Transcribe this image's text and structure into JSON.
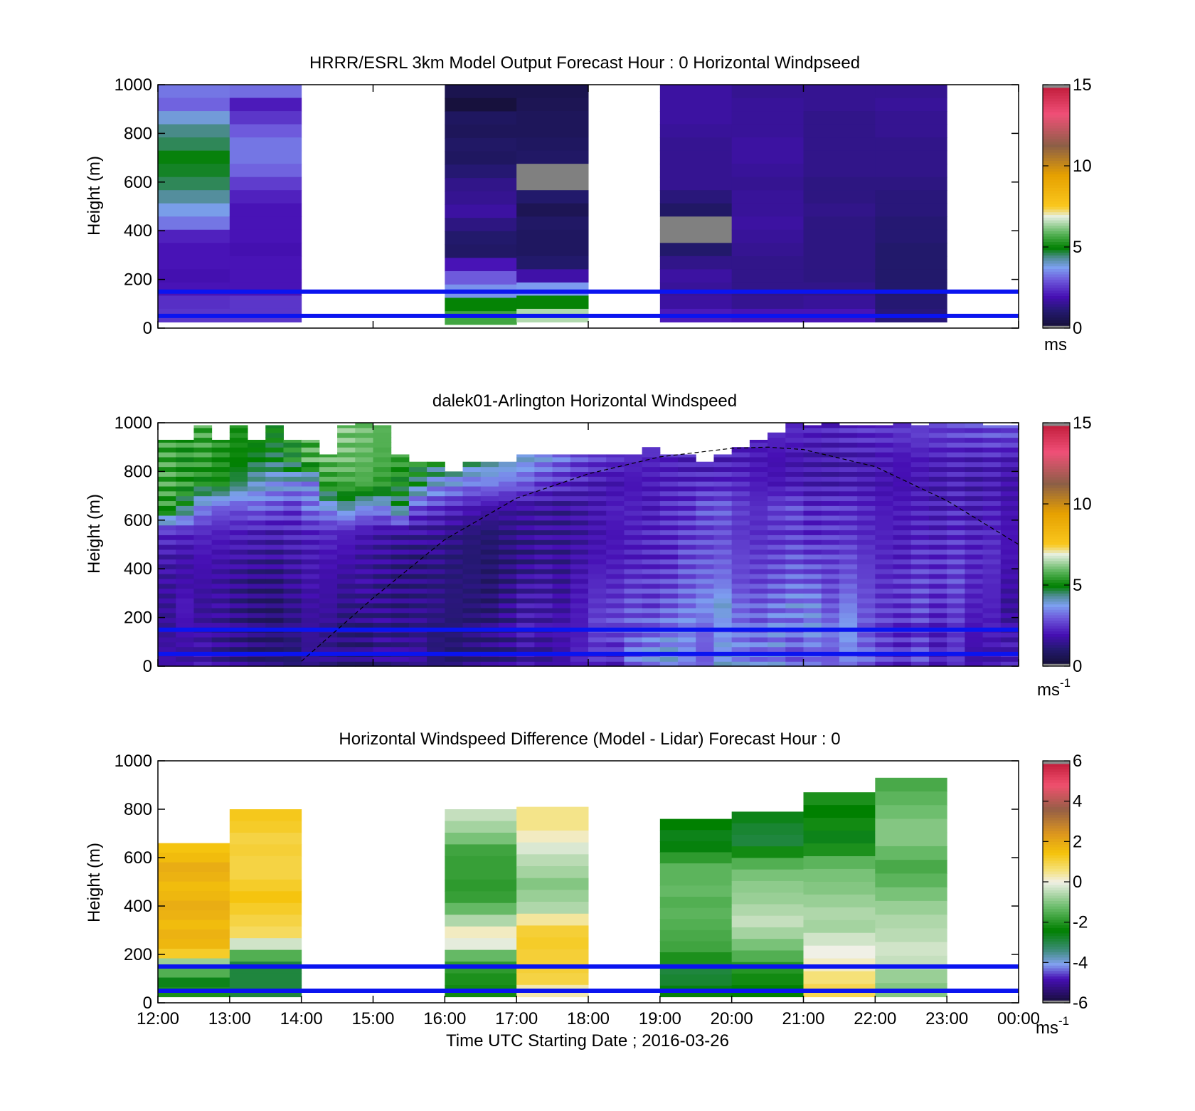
{
  "figure": {
    "xlabel": "Time UTC  Starting Date ; 2016-03-26",
    "x_tick_labels": [
      "12:00",
      "13:00",
      "14:00",
      "15:00",
      "16:00",
      "17:00",
      "18:00",
      "19:00",
      "20:00",
      "21:00",
      "22:00",
      "23:00",
      "00:00"
    ]
  },
  "chart_data": [
    {
      "type": "heatmap",
      "title": "HRRR/ESRL 3km Model Output   Forecast Hour : 0 Horizontal Windpseed",
      "ylabel": "Height (m)",
      "ylim": [
        0,
        1000
      ],
      "y_ticks": [
        0,
        200,
        400,
        600,
        800,
        1000
      ],
      "xlim": [
        12,
        24
      ],
      "colorbar": {
        "label": "ms",
        "superscript": "",
        "ticks": [
          0,
          5,
          10,
          15
        ],
        "range": [
          0,
          15
        ],
        "scheme": "speed"
      },
      "reference_lines_m": [
        50,
        150
      ],
      "columns": [
        {
          "start_hour": 12,
          "top_m": 1000,
          "bottom_m": 25,
          "values": [
            3.3,
            3.1,
            3.9,
            4.4,
            4.6,
            4.9,
            4.8,
            4.6,
            4.3,
            3.8,
            3.3,
            2.2,
            2.0,
            2.0,
            1.9,
            2.0,
            2.4,
            2.5
          ]
        },
        {
          "start_hour": 13,
          "top_m": 1000,
          "bottom_m": 25,
          "values": [
            3.2,
            2.1,
            2.5,
            3.0,
            3.3,
            3.3,
            3.1,
            2.6,
            2.2,
            2.0,
            2.0,
            2.0,
            1.9,
            2.0,
            2.0,
            2.0,
            2.5,
            2.5
          ]
        },
        {
          "start_hour": 16,
          "top_m": 1000,
          "bottom_m": 15,
          "values": [
            0.5,
            0.2,
            0.8,
            0.7,
            0.9,
            0.8,
            1.1,
            1.4,
            1.5,
            1.7,
            1.3,
            1.0,
            0.9,
            2.0,
            3.0,
            3.6,
            5.0,
            5.6
          ]
        },
        {
          "start_hour": 17,
          "top_m": 1000,
          "bottom_m": 25,
          "values": [
            0.5,
            0.6,
            0.7,
            0.7,
            0.8,
            0.9,
            0.0,
            0.0,
            1.0,
            0.6,
            0.9,
            0.8,
            0.8,
            1.0,
            1.8,
            3.7,
            5.0,
            6.5
          ]
        },
        {
          "start_hour": 19,
          "top_m": 1000,
          "bottom_m": 25,
          "values": [
            1.7,
            1.7,
            1.7,
            1.6,
            1.5,
            1.5,
            1.5,
            1.5,
            1.2,
            0.9,
            0.0,
            0.0,
            1.0,
            1.4,
            1.7,
            1.6,
            1.7,
            2.1
          ]
        },
        {
          "start_hour": 20,
          "top_m": 1000,
          "bottom_m": 25,
          "values": [
            1.5,
            1.6,
            1.6,
            1.6,
            1.7,
            1.7,
            1.6,
            1.5,
            1.6,
            1.6,
            1.7,
            1.6,
            1.5,
            1.4,
            1.4,
            1.4,
            1.5,
            2.0
          ]
        },
        {
          "start_hour": 21,
          "top_m": 1000,
          "bottom_m": 25,
          "values": [
            1.5,
            1.5,
            1.4,
            1.4,
            1.4,
            1.4,
            1.4,
            1.3,
            1.3,
            1.4,
            1.3,
            1.3,
            1.3,
            1.3,
            1.3,
            1.4,
            1.6,
            2.0
          ]
        },
        {
          "start_hour": 22,
          "top_m": 1000,
          "bottom_m": 25,
          "values": [
            1.5,
            1.6,
            1.5,
            1.5,
            1.4,
            1.4,
            1.4,
            1.3,
            1.2,
            1.2,
            1.1,
            1.1,
            1.0,
            1.0,
            1.0,
            1.0,
            1.1,
            1.2
          ]
        }
      ]
    },
    {
      "type": "heatmap",
      "title": "dalek01-Arlington  Horizontal Windspeed",
      "ylabel": "Height (m)",
      "ylim": [
        0,
        1000
      ],
      "y_ticks": [
        0,
        200,
        400,
        600,
        800,
        1000
      ],
      "xlim": [
        12,
        24
      ],
      "colorbar": {
        "label": "ms",
        "superscript": "-1",
        "ticks": [
          0,
          5,
          10,
          15
        ],
        "range": [
          0,
          15
        ],
        "scheme": "speed"
      },
      "reference_lines_m": [
        50,
        150
      ],
      "column_width_hours": 0.25,
      "top_m_by_column": [
        930,
        930,
        990,
        930,
        990,
        930,
        990,
        930,
        930,
        870,
        990,
        1000,
        990,
        870,
        840,
        840,
        800,
        840,
        840,
        840,
        870,
        870,
        870,
        870,
        870,
        870,
        870,
        900,
        870,
        870,
        840,
        870,
        900,
        930,
        960,
        1000,
        990,
        1000,
        990,
        990,
        990,
        1000,
        990,
        1000,
        1000,
        1000,
        990,
        990
      ],
      "profiles": [
        {
          "height_m": 50,
          "values": [
            1.8,
            1.7,
            1.9,
            1.6,
            1.4,
            1.2,
            1.2,
            1.1,
            1.5,
            1.4,
            1.2,
            1.2,
            1.5,
            1.6,
            1.6,
            1.2,
            1.1,
            1.3,
            1.4,
            1.5,
            1.8,
            1.6,
            1.8,
            2.2,
            2.4,
            2.2,
            3.2,
            3.5,
            3.8,
            3.4,
            3.0,
            3.9,
            3.6,
            3.4,
            3.5,
            3.0,
            3.2,
            3.0,
            3.4,
            3.1,
            2.6,
            2.3,
            2.8,
            2.1,
            2.5,
            1.8,
            1.9,
            2.1
          ]
        },
        {
          "height_m": 150,
          "values": [
            1.6,
            1.9,
            1.7,
            1.5,
            1.3,
            1.1,
            1.0,
            1.3,
            1.6,
            1.5,
            1.3,
            1.3,
            1.6,
            1.4,
            1.5,
            1.2,
            1.1,
            1.2,
            1.3,
            1.5,
            1.9,
            1.7,
            1.9,
            2.1,
            2.8,
            2.9,
            3.0,
            3.2,
            3.4,
            3.6,
            3.1,
            3.5,
            3.2,
            3.0,
            3.4,
            3.1,
            3.6,
            3.3,
            3.8,
            3.0,
            2.7,
            2.4,
            2.6,
            2.2,
            2.6,
            2.0,
            2.1,
            1.8
          ]
        },
        {
          "height_m": 250,
          "values": [
            1.6,
            2.1,
            1.6,
            1.7,
            1.4,
            1.2,
            1.1,
            1.4,
            1.7,
            1.7,
            1.4,
            1.5,
            1.4,
            1.3,
            1.4,
            1.4,
            1.2,
            1.1,
            1.1,
            1.5,
            1.9,
            1.9,
            1.7,
            2.1,
            2.5,
            2.6,
            2.9,
            2.7,
            3.0,
            3.3,
            3.6,
            4.0,
            3.2,
            3.0,
            3.2,
            3.5,
            3.5,
            2.9,
            3.4,
            2.9,
            2.6,
            2.5,
            2.8,
            2.4,
            2.7,
            2.2,
            2.2,
            1.6
          ]
        },
        {
          "height_m": 350,
          "values": [
            1.7,
            1.8,
            1.8,
            1.7,
            1.5,
            1.3,
            1.3,
            1.6,
            1.9,
            1.8,
            1.6,
            1.7,
            1.5,
            1.3,
            1.3,
            1.3,
            1.2,
            1.2,
            1.0,
            1.3,
            1.7,
            1.8,
            1.6,
            2.0,
            2.3,
            2.3,
            2.6,
            2.6,
            2.7,
            3.0,
            3.2,
            3.3,
            2.8,
            2.7,
            2.9,
            3.1,
            3.0,
            2.7,
            3.0,
            2.7,
            2.4,
            2.5,
            2.7,
            2.5,
            2.8,
            2.3,
            2.3,
            1.8
          ]
        },
        {
          "height_m": 450,
          "values": [
            1.9,
            1.8,
            2.0,
            1.9,
            1.8,
            1.7,
            1.6,
            1.8,
            2.0,
            2.0,
            1.9,
            1.7,
            1.6,
            1.4,
            1.3,
            1.4,
            1.2,
            1.1,
            1.0,
            1.2,
            1.4,
            1.6,
            1.5,
            1.8,
            2.0,
            2.1,
            2.2,
            2.3,
            2.4,
            2.8,
            2.9,
            3.0,
            2.7,
            2.6,
            2.7,
            2.9,
            2.7,
            2.7,
            2.8,
            2.5,
            2.3,
            2.2,
            2.5,
            2.4,
            2.6,
            2.3,
            2.4,
            2.0
          ]
        },
        {
          "height_m": 550,
          "values": [
            2.4,
            2.3,
            2.3,
            2.2,
            2.2,
            2.1,
            2.0,
            2.2,
            2.3,
            2.4,
            2.2,
            2.0,
            1.8,
            1.7,
            1.7,
            1.6,
            1.4,
            1.2,
            1.1,
            1.3,
            1.5,
            1.6,
            1.6,
            1.7,
            1.9,
            2.0,
            2.2,
            2.3,
            2.4,
            2.6,
            2.7,
            2.8,
            2.5,
            2.4,
            2.5,
            2.6,
            2.4,
            2.5,
            2.5,
            2.3,
            2.2,
            2.1,
            2.3,
            2.2,
            2.4,
            2.2,
            2.3,
            2.0
          ]
        },
        {
          "height_m": 650,
          "values": [
            5.4,
            4.6,
            3.4,
            3.0,
            2.9,
            3.1,
            2.9,
            2.6,
            3.3,
            3.6,
            4.2,
            3.6,
            3.5,
            4.5,
            2.8,
            2.5,
            2.2,
            2.0,
            1.8,
            1.7,
            1.7,
            1.7,
            1.6,
            1.8,
            2.0,
            2.2,
            2.2,
            2.1,
            2.4,
            2.5,
            2.9,
            3.0,
            2.6,
            2.4,
            2.7,
            2.8,
            2.4,
            2.5,
            2.5,
            2.3,
            2.1,
            2.1,
            2.2,
            2.1,
            2.3,
            2.1,
            2.2,
            1.9
          ]
        },
        {
          "height_m": 750,
          "values": [
            5.6,
            5.4,
            5.1,
            5.2,
            4.6,
            4.1,
            3.8,
            3.7,
            3.5,
            5.5,
            5.6,
            5.7,
            5.4,
            5.0,
            4.6,
            3.8,
            3.6,
            3.3,
            3.4,
            3.2,
            3.0,
            2.6,
            2.4,
            2.2,
            2.0,
            1.9,
            2.0,
            2.1,
            2.2,
            2.3,
            2.4,
            2.4,
            2.3,
            2.1,
            2.0,
            2.1,
            2.0,
            2.0,
            2.1,
            2.0,
            1.9,
            1.9,
            2.0,
            1.9,
            2.1,
            1.9,
            2.0,
            1.8
          ]
        },
        {
          "height_m": 850,
          "values": [
            5.6,
            5.3,
            5.5,
            5.2,
            5.0,
            4.8,
            4.7,
            5.1,
            5.8,
            5.9,
            6.0,
            5.9,
            5.7,
            5.5,
            5.3,
            5.0,
            4.8,
            4.6,
            4.4,
            4.2,
            3.9,
            3.6,
            3.2,
            2.8,
            2.6,
            2.4,
            2.3,
            2.2,
            2.2,
            2.1,
            2.0,
            2.1,
            2.1,
            2.0,
            1.9,
            1.9,
            1.9,
            1.9,
            2.0,
            2.0,
            2.1,
            2.0,
            2.1,
            2.1,
            2.2,
            2.1,
            2.2,
            2.0
          ]
        },
        {
          "height_m": 950,
          "values": [
            5.5,
            5.4,
            5.6,
            5.4,
            5.2,
            5.1,
            5.0,
            5.2,
            5.6,
            5.9,
            6.1,
            6.0,
            5.8,
            5.6,
            5.5,
            5.3,
            5.1,
            4.9,
            4.7,
            4.5,
            4.3,
            4.1,
            3.9,
            3.7,
            3.5,
            3.3,
            3.1,
            3.0,
            2.9,
            2.7,
            2.6,
            2.5,
            2.4,
            2.3,
            2.3,
            2.3,
            2.2,
            2.2,
            2.3,
            2.4,
            2.4,
            2.5,
            2.6,
            2.6,
            2.7,
            2.7,
            2.8,
            2.8
          ]
        }
      ],
      "boundary_layer_curve": [
        [
          14.0,
          20
        ],
        [
          15.0,
          280
        ],
        [
          16.0,
          520
        ],
        [
          17.0,
          690
        ],
        [
          18.0,
          790
        ],
        [
          19.0,
          860
        ],
        [
          20.0,
          895
        ],
        [
          20.5,
          900
        ],
        [
          21.0,
          890
        ],
        [
          22.0,
          820
        ],
        [
          23.0,
          680
        ],
        [
          24.0,
          500
        ]
      ]
    },
    {
      "type": "heatmap",
      "title": "Horizontal Windspeed Difference (Model - Lidar) Forecast Hour : 0",
      "ylabel": "Height (m)",
      "ylim": [
        0,
        1000
      ],
      "y_ticks": [
        0,
        200,
        400,
        600,
        800,
        1000
      ],
      "xlim": [
        12,
        24
      ],
      "colorbar": {
        "label": "ms",
        "superscript": "-1",
        "ticks": [
          -6,
          -4,
          -2,
          0,
          2,
          4,
          6
        ],
        "range": [
          -6,
          6
        ],
        "scheme": "diff"
      },
      "reference_lines_m": [
        50,
        150
      ],
      "columns": [
        {
          "start_hour": 12,
          "top_m": 660,
          "bottom_m": 25,
          "values": [
            1.4,
            1.6,
            1.9,
            1.8,
            1.6,
            1.7,
            1.9,
            1.8,
            1.6,
            1.8,
            1.7,
            1.2,
            -0.8,
            -1.5,
            -2.6,
            -2.1
          ]
        },
        {
          "start_hour": 13,
          "top_m": 800,
          "bottom_m": 25,
          "values": [
            1.3,
            1.2,
            1.0,
            1.1,
            1.0,
            1.0,
            1.2,
            1.4,
            1.2,
            1.0,
            0.8,
            -0.3,
            -1.5,
            -2.9,
            -2.9,
            -2.9
          ]
        },
        {
          "start_hour": 16,
          "top_m": 800,
          "bottom_m": 25,
          "values": [
            -0.4,
            -0.7,
            -1.1,
            -1.7,
            -1.8,
            -1.8,
            -1.9,
            -1.8,
            -1.3,
            -0.6,
            0.2,
            -0.1,
            -1.3,
            -1.9,
            -2.1,
            -2.2
          ]
        },
        {
          "start_hour": 17,
          "top_m": 810,
          "bottom_m": 25,
          "values": [
            0.5,
            0.5,
            0.2,
            -0.2,
            -0.5,
            -0.7,
            -1.0,
            -0.8,
            -0.6,
            0.4,
            1.1,
            1.2,
            1.1,
            1.1,
            1.0,
            0.3
          ]
        },
        {
          "start_hour": 19,
          "top_m": 760,
          "bottom_m": 25,
          "values": [
            -2.4,
            -2.6,
            -2.5,
            -1.9,
            -1.4,
            -1.4,
            -1.3,
            -1.5,
            -1.4,
            -1.5,
            -1.6,
            -1.7,
            -2.1,
            -2.9,
            -2.8,
            -2.5
          ]
        },
        {
          "start_hour": 20,
          "top_m": 790,
          "bottom_m": 25,
          "values": [
            -2.6,
            -2.8,
            -2.9,
            -2.2,
            -1.5,
            -1.1,
            -0.9,
            -0.8,
            -0.6,
            -0.4,
            -0.7,
            -1.1,
            -1.5,
            -2.0,
            -2.2,
            -2.4
          ]
        },
        {
          "start_hour": 21,
          "top_m": 870,
          "bottom_m": 25,
          "values": [
            -2.1,
            -2.4,
            -2.2,
            -2.6,
            -2.1,
            -1.4,
            -1.1,
            -1.0,
            -0.8,
            -0.6,
            -0.7,
            -0.3,
            0.0,
            0.2,
            0.6,
            0.9
          ]
        },
        {
          "start_hour": 22,
          "top_m": 930,
          "bottom_m": 25,
          "values": [
            -1.6,
            -1.4,
            -1.2,
            -1.0,
            -1.0,
            -1.3,
            -1.6,
            -1.4,
            -1.1,
            -0.8,
            -0.6,
            -0.5,
            -0.3,
            -0.4,
            -0.8,
            -1.0
          ]
        }
      ]
    }
  ]
}
